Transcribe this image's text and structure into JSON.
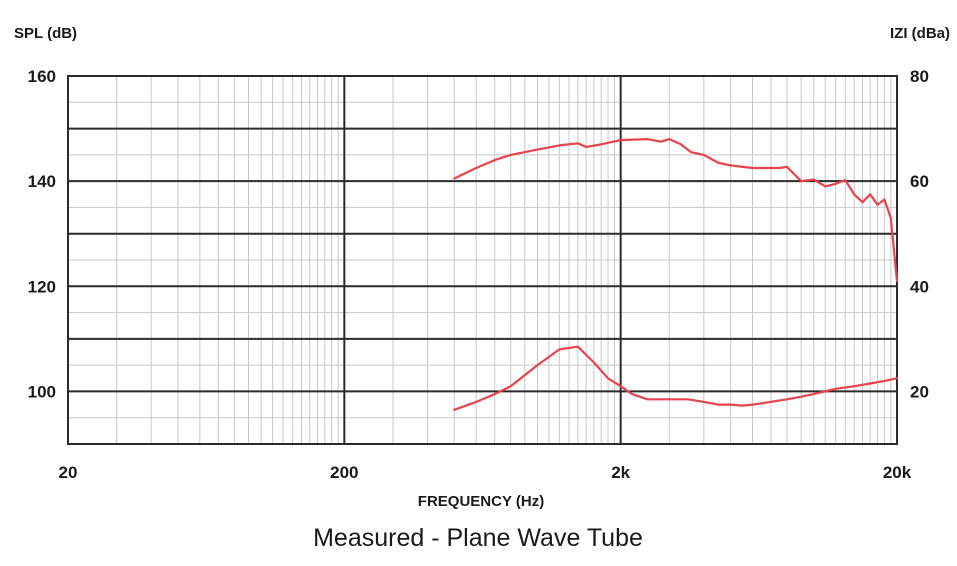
{
  "chart_data": {
    "type": "line",
    "caption": "Measured - Plane Wave Tube",
    "xlabel": "FREQUENCY (Hz)",
    "ylabel_left": "SPL (dB)",
    "ylabel_right": "IZI (dBa)",
    "xscale": "log",
    "xlim": [
      20,
      20000
    ],
    "ylim_left": [
      90,
      160
    ],
    "ylim_right": [
      10,
      80
    ],
    "x_ticks": [
      {
        "value": 20,
        "label": "20"
      },
      {
        "value": 200,
        "label": "200"
      },
      {
        "value": 2000,
        "label": "2k"
      },
      {
        "value": 20000,
        "label": "20k"
      }
    ],
    "y_ticks_left": [
      {
        "value": 100,
        "label": "100"
      },
      {
        "value": 120,
        "label": "120"
      },
      {
        "value": 140,
        "label": "140"
      },
      {
        "value": 160,
        "label": "160"
      }
    ],
    "y_ticks_right": [
      {
        "value": 20,
        "label": "20"
      },
      {
        "value": 40,
        "label": "40"
      },
      {
        "value": 60,
        "label": "60"
      },
      {
        "value": 80,
        "label": "80"
      }
    ],
    "grid": true,
    "line_color": "#e8424d",
    "series": [
      {
        "axis": "left",
        "x": [
          500,
          600,
          700,
          800,
          1000,
          1200,
          1400,
          1500,
          1700,
          2000,
          2500,
          2800,
          3000,
          3300,
          3600,
          4000,
          4500,
          5000,
          6000,
          7000,
          7500,
          8000,
          9000,
          10000,
          11000,
          12000,
          13000,
          14000,
          15000,
          16000,
          17000,
          18000,
          19000,
          20000
        ],
        "y": [
          140.5,
          142.5,
          144,
          145,
          146,
          146.8,
          147.2,
          146.5,
          147,
          147.8,
          148,
          147.5,
          148,
          147,
          145.5,
          145,
          143.5,
          143,
          142.5,
          142.5,
          142.5,
          142.7,
          140,
          140.3,
          139,
          139.5,
          140.2,
          137.5,
          136,
          137.5,
          135.5,
          136.5,
          133,
          121
        ]
      },
      {
        "axis": "right",
        "x": [
          500,
          600,
          700,
          800,
          1000,
          1200,
          1400,
          1600,
          1800,
          2000,
          2200,
          2500,
          3000,
          3500,
          4000,
          4500,
          5000,
          5500,
          6000,
          7000,
          8000,
          9000,
          10000,
          12000,
          14000,
          16000,
          18000,
          20000
        ],
        "y": [
          16.5,
          18,
          19.5,
          21,
          25,
          28,
          28.5,
          25.5,
          22.5,
          21,
          19.5,
          18.5,
          18.5,
          18.5,
          18,
          17.5,
          17.5,
          17.3,
          17.5,
          18,
          18.5,
          19,
          19.5,
          20.5,
          21,
          21.5,
          22,
          22.5
        ]
      }
    ]
  }
}
